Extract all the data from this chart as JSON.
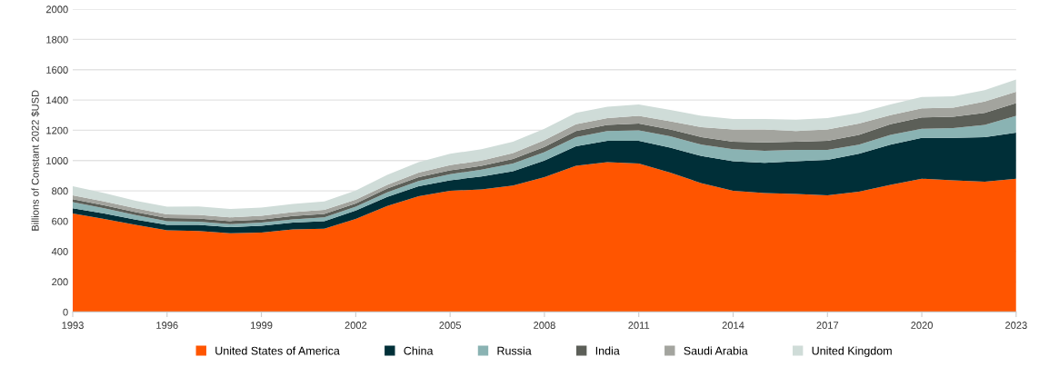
{
  "chart_data": {
    "type": "area",
    "stacked": true,
    "ylabel": "Billions of Constant 2022 $USD",
    "x": [
      1993,
      1994,
      1995,
      1996,
      1997,
      1998,
      1999,
      2000,
      2001,
      2002,
      2003,
      2004,
      2005,
      2006,
      2007,
      2008,
      2009,
      2010,
      2011,
      2012,
      2013,
      2014,
      2015,
      2016,
      2017,
      2018,
      2019,
      2020,
      2021,
      2022,
      2023
    ],
    "series": [
      {
        "name": "United States of America",
        "color": "#ff5500",
        "values": [
          650,
          615,
          575,
          540,
          535,
          520,
          525,
          545,
          550,
          615,
          700,
          765,
          800,
          810,
          835,
          890,
          965,
          990,
          980,
          920,
          850,
          800,
          785,
          780,
          770,
          795,
          840,
          880,
          870,
          860,
          880
        ]
      },
      {
        "name": "China",
        "color": "#002f38",
        "values": [
          35,
          35,
          35,
          35,
          40,
          40,
          45,
          45,
          50,
          55,
          60,
          65,
          70,
          85,
          95,
          110,
          130,
          140,
          150,
          165,
          180,
          195,
          200,
          215,
          235,
          250,
          265,
          270,
          280,
          295,
          305
        ]
      },
      {
        "name": "Russia",
        "color": "#8ab3b3",
        "values": [
          40,
          35,
          30,
          25,
          22,
          20,
          20,
          22,
          25,
          25,
          30,
          35,
          40,
          45,
          50,
          55,
          60,
          65,
          70,
          75,
          75,
          80,
          80,
          75,
          65,
          60,
          65,
          60,
          65,
          80,
          110
        ]
      },
      {
        "name": "India",
        "color": "#5c5f58",
        "values": [
          20,
          20,
          20,
          20,
          20,
          20,
          20,
          22,
          22,
          22,
          25,
          25,
          25,
          25,
          30,
          35,
          40,
          40,
          45,
          45,
          50,
          50,
          55,
          55,
          60,
          65,
          70,
          75,
          75,
          80,
          85
        ]
      },
      {
        "name": "Saudi Arabia",
        "color": "#a3a49e",
        "values": [
          25,
          25,
          25,
          25,
          25,
          25,
          25,
          25,
          28,
          25,
          25,
          30,
          35,
          35,
          40,
          45,
          45,
          45,
          50,
          55,
          65,
          80,
          85,
          70,
          75,
          75,
          60,
          60,
          60,
          75,
          75
        ]
      },
      {
        "name": "United Kingdom",
        "color": "#cfdcd8",
        "values": [
          60,
          55,
          50,
          50,
          55,
          55,
          55,
          55,
          55,
          60,
          65,
          70,
          75,
          75,
          75,
          75,
          75,
          75,
          75,
          75,
          75,
          70,
          70,
          75,
          75,
          70,
          70,
          75,
          75,
          75,
          80
        ]
      }
    ],
    "xlim": [
      1993,
      2023
    ],
    "xticks": [
      1993,
      1996,
      1999,
      2002,
      2005,
      2008,
      2011,
      2014,
      2017,
      2020,
      2023
    ],
    "ylim": [
      0,
      2000
    ],
    "yticks": [
      0,
      200,
      400,
      600,
      800,
      1000,
      1200,
      1400,
      1600,
      1800,
      2000
    ],
    "grid": "y",
    "legend": "bottom"
  }
}
